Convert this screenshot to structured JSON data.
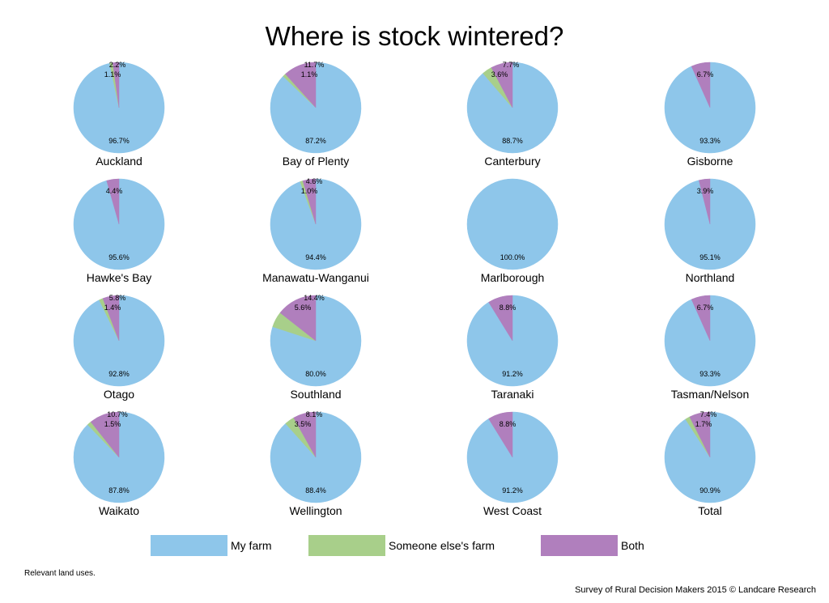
{
  "title": "Where is stock wintered?",
  "note": "Relevant land uses.",
  "credit": "Survey of Rural Decision Makers 2015 © Landcare Research",
  "colors": {
    "my_farm": "#8ec6ea",
    "someone_else": "#a8cf8a",
    "both": "#b07fbd"
  },
  "legend": [
    {
      "label": "My farm",
      "color": "#8ec6ea"
    },
    {
      "label": "Someone else's farm",
      "color": "#a8cf8a"
    },
    {
      "label": "Both",
      "color": "#b07fbd"
    }
  ],
  "chart_data": {
    "type": "pie",
    "title": "Where is stock wintered?",
    "series_names": [
      "My farm",
      "Someone else's farm",
      "Both"
    ],
    "legend_position": "bottom",
    "pies": [
      {
        "name": "Auckland",
        "values": [
          96.7,
          1.1,
          2.2
        ],
        "labels": [
          "96.7%",
          "1.1%",
          "2.2%"
        ]
      },
      {
        "name": "Bay of Plenty",
        "values": [
          87.2,
          1.1,
          11.7
        ],
        "labels": [
          "87.2%",
          "1.1%",
          "11.7%"
        ]
      },
      {
        "name": "Canterbury",
        "values": [
          88.7,
          3.6,
          7.7
        ],
        "labels": [
          "88.7%",
          "3.6%",
          "7.7%"
        ]
      },
      {
        "name": "Gisborne",
        "values": [
          93.3,
          0,
          6.7
        ],
        "labels": [
          "93.3%",
          "",
          "6.7%"
        ]
      },
      {
        "name": "Hawke's Bay",
        "values": [
          95.6,
          0,
          4.4
        ],
        "labels": [
          "95.6%",
          "",
          "4.4%"
        ]
      },
      {
        "name": "Manawatu-Wanganui",
        "values": [
          94.4,
          1.0,
          4.6
        ],
        "labels": [
          "94.4%",
          "1.0%",
          "4.6%"
        ]
      },
      {
        "name": "Marlborough",
        "values": [
          100.0,
          0,
          0
        ],
        "labels": [
          "100.0%",
          "",
          ""
        ]
      },
      {
        "name": "Northland",
        "values": [
          95.1,
          0,
          3.9
        ],
        "labels": [
          "95.1%",
          "",
          "3.9%"
        ]
      },
      {
        "name": "Otago",
        "values": [
          92.8,
          1.4,
          5.8
        ],
        "labels": [
          "92.8%",
          "1.4%",
          "5.8%"
        ]
      },
      {
        "name": "Southland",
        "values": [
          80.0,
          5.6,
          14.4
        ],
        "labels": [
          "80.0%",
          "5.6%",
          "14.4%"
        ]
      },
      {
        "name": "Taranaki",
        "values": [
          91.2,
          0,
          8.8
        ],
        "labels": [
          "91.2%",
          "",
          "8.8%"
        ]
      },
      {
        "name": "Tasman/Nelson",
        "values": [
          93.3,
          0,
          6.7
        ],
        "labels": [
          "93.3%",
          "",
          "6.7%"
        ]
      },
      {
        "name": "Waikato",
        "values": [
          87.8,
          1.5,
          10.7
        ],
        "labels": [
          "87.8%",
          "1.5%",
          "10.7%"
        ]
      },
      {
        "name": "Wellington",
        "values": [
          88.4,
          3.5,
          8.1
        ],
        "labels": [
          "88.4%",
          "3.5%",
          "8.1%"
        ]
      },
      {
        "name": "West Coast",
        "values": [
          91.2,
          0,
          8.8
        ],
        "labels": [
          "91.2%",
          "",
          "8.8%"
        ]
      },
      {
        "name": "Total",
        "values": [
          90.9,
          1.7,
          7.4
        ],
        "labels": [
          "90.9%",
          "1.7%",
          "7.4%"
        ]
      }
    ]
  }
}
